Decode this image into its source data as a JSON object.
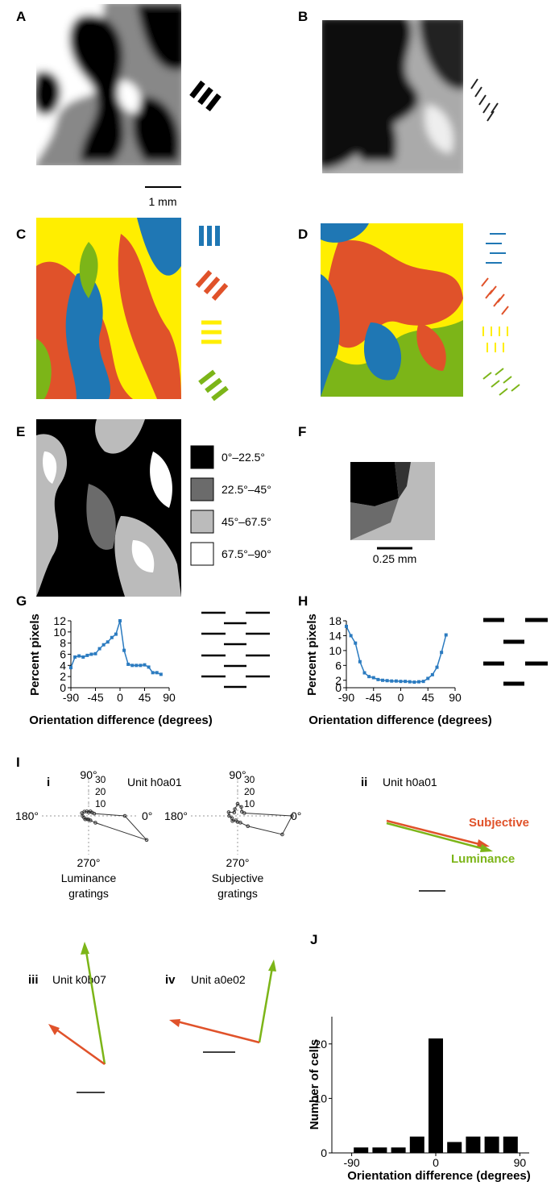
{
  "panel_labels": [
    "A",
    "B",
    "C",
    "D",
    "E",
    "F",
    "G",
    "H",
    "I",
    "J"
  ],
  "scale_bars": {
    "A": "1 mm",
    "F": "0.25 mm"
  },
  "legend_E": [
    "0°–22.5°",
    "22.5°–45°",
    "45°–67.5°",
    "67.5°–90°"
  ],
  "panel_I": {
    "sub_labels": [
      "i",
      "ii",
      "iii",
      "iv"
    ],
    "units": [
      "Unit h0a01",
      "Unit h0a01",
      "Unit k0b07",
      "Unit a0e02"
    ],
    "polar_angle_labels": [
      "90°",
      "180°",
      "0°",
      "270°"
    ],
    "polar_captions": [
      [
        "Luminance",
        "gratings"
      ],
      [
        "Subjective",
        "gratings"
      ]
    ],
    "arrow_labels": [
      "Subjective",
      "Luminance"
    ]
  },
  "chart_data": [
    {
      "type": "line",
      "xlabel": "Orientation difference (degrees)",
      "ylabel": "Percent pixels",
      "color": "#2b7bc0",
      "x": [
        -90,
        -82.5,
        -75,
        -67.5,
        -60,
        -52.5,
        -45,
        -37.5,
        -30,
        -22.5,
        -15,
        -7.5,
        0,
        7.5,
        15,
        22.5,
        30,
        37.5,
        45,
        52.5,
        60,
        67.5,
        75
      ],
      "values": [
        3.6,
        5.5,
        5.7,
        5.5,
        5.8,
        6.0,
        6.1,
        7.0,
        7.7,
        8.2,
        9.0,
        9.6,
        12,
        6.7,
        4.2,
        4.0,
        4.0,
        4.0,
        4.1,
        3.7,
        2.7,
        2.7,
        2.4
      ],
      "xlim": [
        -90,
        90
      ],
      "xticks": [
        -90,
        -45,
        0,
        45,
        90
      ],
      "ylim": [
        0,
        12
      ],
      "yticks": [
        0,
        2,
        4,
        6,
        8,
        10,
        12
      ]
    },
    {
      "type": "line",
      "xlabel": "Orientation difference (degrees)",
      "ylabel": "Percent pixels",
      "color": "#2b7bc0",
      "x": [
        -90,
        -82.5,
        -75,
        -67.5,
        -60,
        -52.5,
        -45,
        -37.5,
        -30,
        -22.5,
        -15,
        -7.5,
        0,
        7.5,
        15,
        22.5,
        30,
        37.5,
        45,
        52.5,
        60,
        67.5,
        75
      ],
      "values": [
        16.5,
        14,
        12,
        7,
        4,
        3,
        2.7,
        2.2,
        2.0,
        1.9,
        1.8,
        1.8,
        1.7,
        1.7,
        1.6,
        1.5,
        1.6,
        1.7,
        2.5,
        3.5,
        5.5,
        9.5,
        14.2
      ],
      "xlim": [
        -90,
        90
      ],
      "xticks": [
        -90,
        -45,
        0,
        45,
        90
      ],
      "ylim": [
        0,
        18
      ],
      "yticks": [
        0,
        2,
        6,
        10,
        14,
        18
      ]
    },
    {
      "type": "bar",
      "xlabel": "Orientation difference (degrees)",
      "ylabel": "Number of cells",
      "color": "#000000",
      "x": [
        -80,
        -60,
        -40,
        -20,
        0,
        20,
        40,
        60,
        80
      ],
      "values": [
        1,
        1,
        1,
        3,
        21,
        2,
        3,
        3,
        3
      ],
      "xlim": [
        -100,
        100
      ],
      "xticks": [
        -90,
        0,
        90
      ],
      "ylim": [
        0,
        25
      ],
      "yticks": [
        0,
        10,
        20
      ]
    },
    {
      "type": "polar",
      "color": "#333333",
      "angles": [
        0,
        22.5,
        45,
        67.5,
        90,
        112.5,
        135,
        157.5,
        180,
        202.5,
        225,
        247.5,
        270,
        292.5,
        315,
        337.5
      ],
      "values": [
        30,
        5,
        4,
        4,
        3,
        4,
        5,
        6,
        5,
        4,
        4,
        3,
        3,
        4,
        8,
        52
      ],
      "rticks": [
        10,
        20,
        30
      ]
    },
    {
      "type": "polar",
      "color": "#333333",
      "angles": [
        0,
        22.5,
        45,
        67.5,
        90,
        112.5,
        135,
        157.5,
        180,
        202.5,
        225,
        247.5,
        270,
        292.5,
        315,
        337.5
      ],
      "values": [
        45,
        6,
        5,
        8,
        10,
        6,
        4,
        8,
        7,
        5,
        6,
        4,
        5,
        6,
        12,
        40
      ],
      "rticks": [
        10,
        20,
        30
      ]
    }
  ]
}
